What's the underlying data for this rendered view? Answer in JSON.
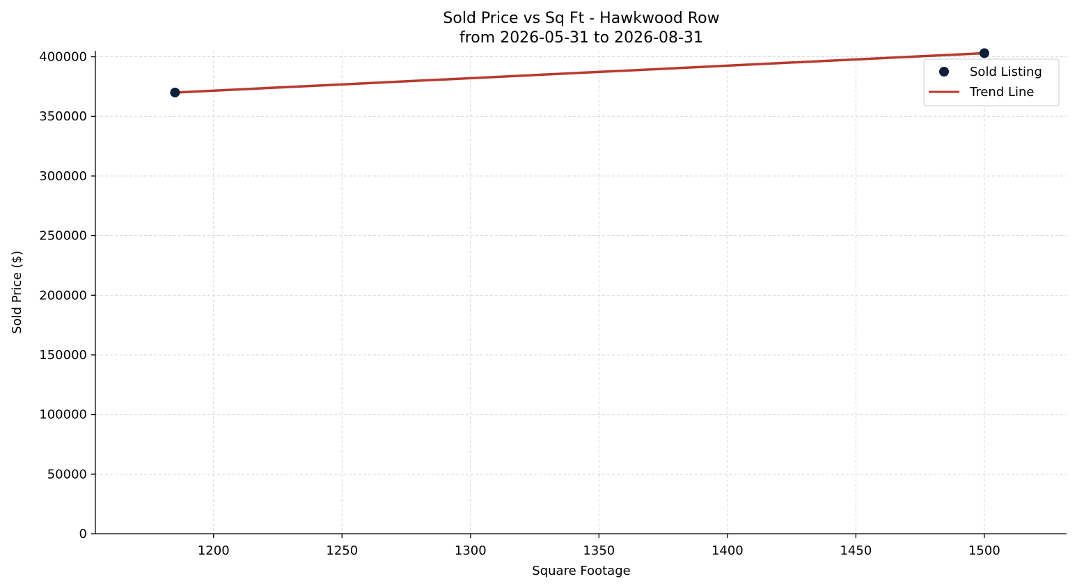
{
  "chart_data": {
    "type": "scatter",
    "title": "Sold Price vs Sq Ft - Hawkwood Row",
    "subtitle": "from 2026-05-31 to 2026-08-31",
    "xlabel": "Square Footage",
    "ylabel": "Sold Price ($)",
    "xlim": [
      1154,
      1532
    ],
    "ylim": [
      0,
      405000
    ],
    "x_ticks": [
      1200,
      1250,
      1300,
      1350,
      1400,
      1450,
      1500
    ],
    "y_ticks": [
      0,
      50000,
      100000,
      150000,
      200000,
      250000,
      300000,
      350000,
      400000
    ],
    "grid": true,
    "legend_position": "top-right",
    "series": [
      {
        "name": "Sold Listing",
        "kind": "scatter",
        "color": "#0b1f3a",
        "points": [
          {
            "x": 1185,
            "y": 370000
          },
          {
            "x": 1500,
            "y": 403000
          }
        ]
      },
      {
        "name": "Trend Line",
        "kind": "line",
        "color": "#b83a2e",
        "points": [
          {
            "x": 1185,
            "y": 370000
          },
          {
            "x": 1500,
            "y": 403000
          }
        ]
      }
    ]
  }
}
